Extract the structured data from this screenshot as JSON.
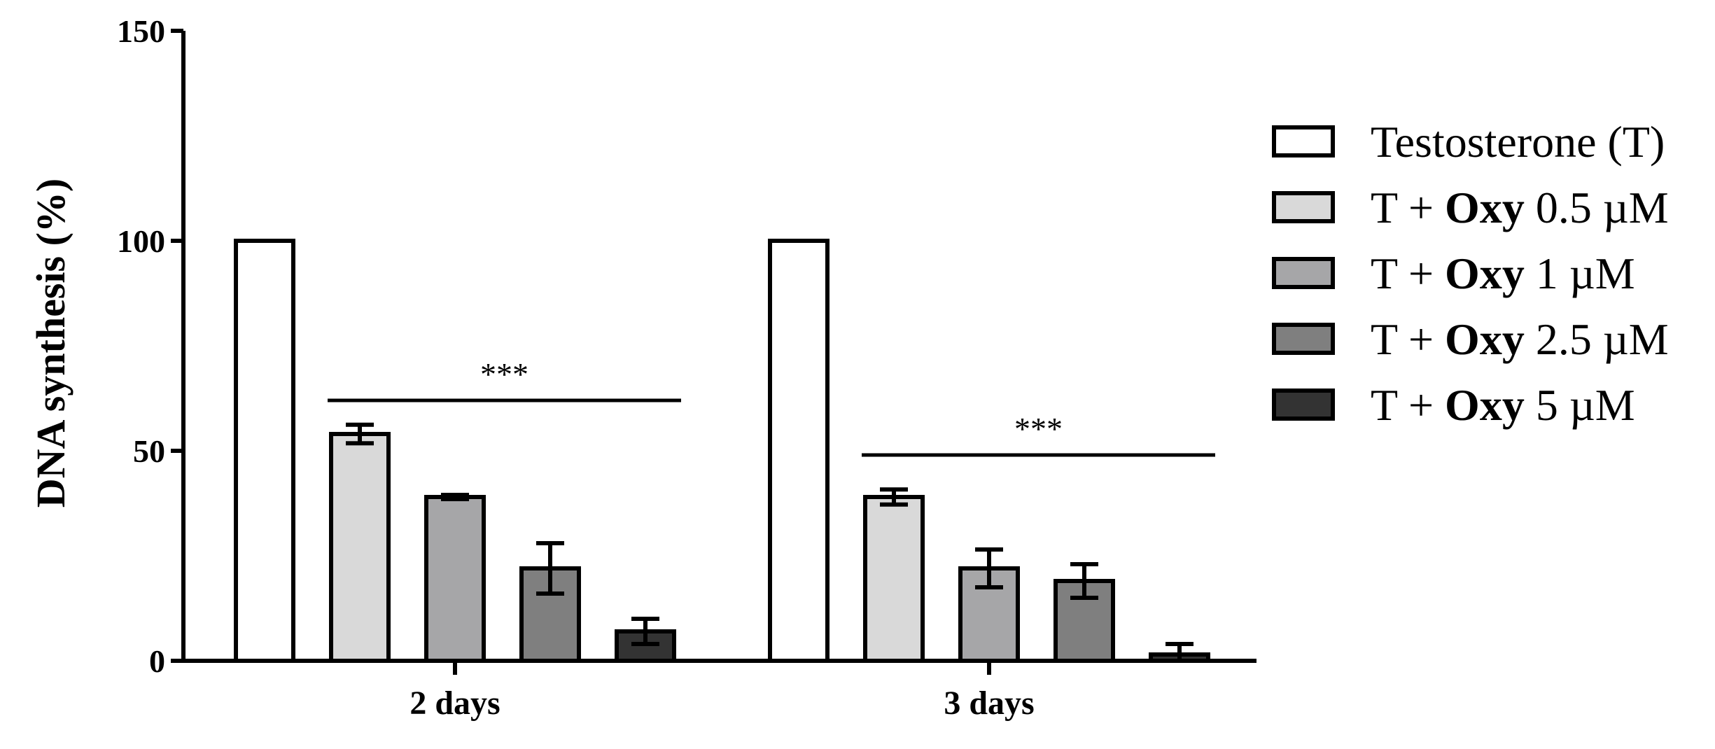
{
  "chart_data": {
    "type": "bar",
    "title": "",
    "xlabel": "",
    "ylabel": "DNA synthesis (%)",
    "ylim": [
      0,
      150
    ],
    "yticks": [
      "0",
      "50",
      "100",
      "150"
    ],
    "grid": false,
    "legend_position": "right",
    "categories": [
      "2 days",
      "3 days"
    ],
    "series": [
      {
        "name": "Testosterone (T)",
        "name_prefix": "",
        "name_bold": "",
        "name_suffix": "Testosterone (T)",
        "color": "#ffffff",
        "values": [
          100,
          100
        ],
        "errors": [
          0,
          0
        ]
      },
      {
        "name": "T + Oxy 0.5 µM",
        "name_prefix": "T + ",
        "name_bold": "Oxy",
        "name_suffix": " 0.5 µM",
        "color": "#d9d9d9",
        "values": [
          54,
          39
        ],
        "errors": [
          2.2,
          1.8
        ]
      },
      {
        "name": "T + Oxy 1 µM",
        "name_prefix": "T + ",
        "name_bold": "Oxy",
        "name_suffix": " 1 µM",
        "color": "#a6a6a8",
        "values": [
          39,
          22
        ],
        "errors": [
          0.5,
          4.5
        ]
      },
      {
        "name": "T + Oxy 2.5 µM",
        "name_prefix": "T + ",
        "name_bold": "Oxy",
        "name_suffix": " 2.5 µM",
        "color": "#7f7f7f",
        "values": [
          22,
          19
        ],
        "errors": [
          6,
          4
        ]
      },
      {
        "name": "T + Oxy 5 µM",
        "name_prefix": "T + ",
        "name_bold": "Oxy",
        "name_suffix": " 5 µM",
        "color": "#333333",
        "values": [
          7,
          1.5
        ],
        "errors": [
          3,
          2.5
        ]
      }
    ],
    "annotations": [
      {
        "label": "***",
        "category": 0,
        "from_series": 1,
        "to_series": 4,
        "y": 62
      },
      {
        "label": "***",
        "category": 1,
        "from_series": 1,
        "to_series": 4,
        "y": 49
      }
    ]
  }
}
